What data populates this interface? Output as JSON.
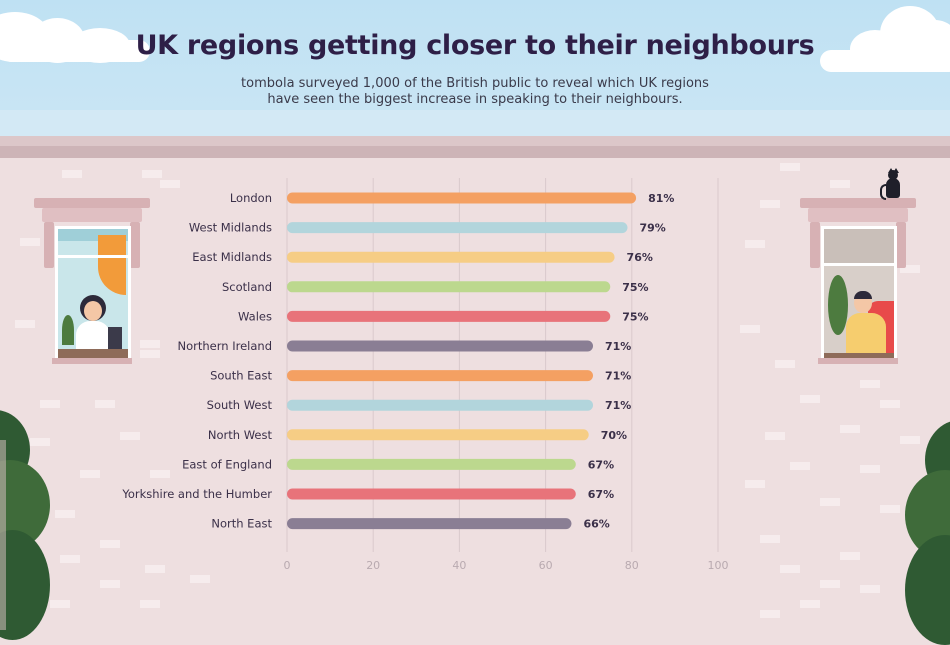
{
  "header": {
    "title": "UK regions getting closer to their neighbours",
    "subtitle_line1": "tombola surveyed 1,000 of the British public to reveal which UK regions",
    "subtitle_line2": "have seen the biggest increase in speaking to their neighbours."
  },
  "chart_data": {
    "type": "bar",
    "orientation": "horizontal",
    "title": "UK regions getting closer to their neighbours",
    "xlabel": "",
    "ylabel": "",
    "xlim": [
      0,
      100
    ],
    "x_ticks": [
      0,
      20,
      40,
      60,
      80,
      100
    ],
    "grid": "vertical",
    "value_suffix": "%",
    "categories": [
      "London",
      "West Midlands",
      "East Midlands",
      "Scotland",
      "Wales",
      "Northern Ireland",
      "South East",
      "South West",
      "North West",
      "East of England",
      "Yorkshire and the Humber",
      "North East"
    ],
    "values": [
      81,
      79,
      76,
      75,
      75,
      71,
      71,
      71,
      70,
      67,
      67,
      66
    ],
    "value_labels": [
      "81%",
      "79%",
      "76%",
      "75%",
      "75%",
      "71%",
      "71%",
      "71%",
      "70%",
      "67%",
      "67%",
      "66%"
    ],
    "bar_colors": [
      "#f4a062",
      "#b2d5dc",
      "#f6cd85",
      "#bcd88e",
      "#e8737a",
      "#8a7e94",
      "#f4a062",
      "#b2d5dc",
      "#f6cd85",
      "#bcd88e",
      "#e8737a",
      "#8a7e94"
    ]
  }
}
